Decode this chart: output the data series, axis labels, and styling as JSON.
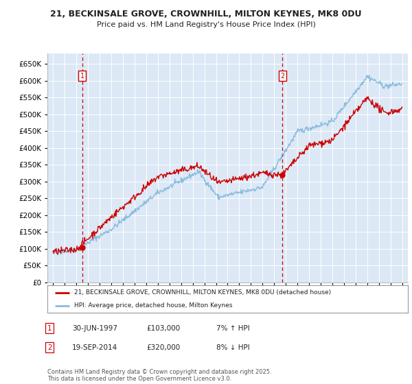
{
  "title": "21, BECKINSALE GROVE, CROWNHILL, MILTON KEYNES, MK8 0DU",
  "subtitle": "Price paid vs. HM Land Registry's House Price Index (HPI)",
  "legend_property": "21, BECKINSALE GROVE, CROWNHILL, MILTON KEYNES, MK8 0DU (detached house)",
  "legend_hpi": "HPI: Average price, detached house, Milton Keynes",
  "transaction1_date": "30-JUN-1997",
  "transaction1_price": 103000,
  "transaction1_note": "7% ↑ HPI",
  "transaction2_date": "19-SEP-2014",
  "transaction2_price": 320000,
  "transaction2_note": "8% ↓ HPI",
  "footnote": "Contains HM Land Registry data © Crown copyright and database right 2025.\nThis data is licensed under the Open Government Licence v3.0.",
  "bg_color": "#ffffff",
  "plot_bg": "#dce8f5",
  "grid_color": "#ffffff",
  "red_color": "#cc0000",
  "blue_color": "#88bbdd",
  "ylim": [
    0,
    680000
  ],
  "yticks": [
    0,
    50000,
    100000,
    150000,
    200000,
    250000,
    300000,
    350000,
    400000,
    450000,
    500000,
    550000,
    600000,
    650000
  ],
  "transaction1_year": 1997.5,
  "transaction2_year": 2014.72
}
